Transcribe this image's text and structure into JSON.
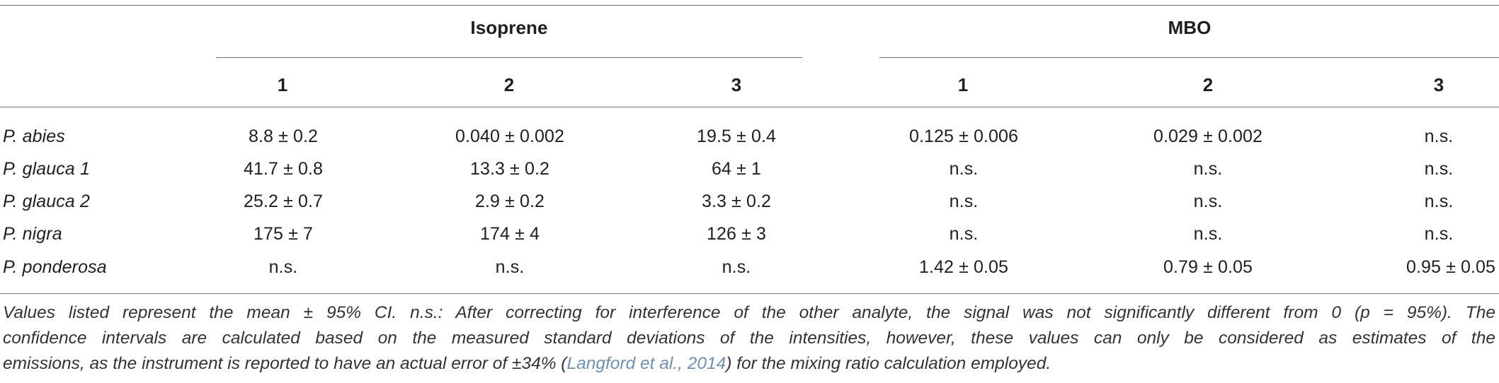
{
  "table": {
    "groups": [
      {
        "label": "Isoprene"
      },
      {
        "label": "MBO"
      }
    ],
    "columns": [
      "1",
      "2",
      "3",
      "1",
      "2",
      "3"
    ],
    "rows": [
      {
        "name": "P. abies",
        "values": [
          "8.8 ± 0.2",
          "0.040 ± 0.002",
          "19.5 ± 0.4",
          "0.125 ± 0.006",
          "0.029 ± 0.002",
          "n.s."
        ]
      },
      {
        "name": "P. glauca 1",
        "values": [
          "41.7 ± 0.8",
          "13.3 ± 0.2",
          "64 ± 1",
          "n.s.",
          "n.s.",
          "n.s."
        ]
      },
      {
        "name": "P. glauca 2",
        "values": [
          "25.2 ± 0.7",
          "2.9 ± 0.2",
          "3.3 ± 0.2",
          "n.s.",
          "n.s.",
          "n.s."
        ]
      },
      {
        "name": "P. nigra",
        "values": [
          "175 ± 7",
          "174 ± 4",
          "126 ± 3",
          "n.s.",
          "n.s.",
          "n.s."
        ]
      },
      {
        "name": "P. ponderosa",
        "values": [
          "n.s.",
          "n.s.",
          "n.s.",
          "1.42 ± 0.05",
          "0.79 ± 0.05",
          "0.95 ± 0.05"
        ]
      }
    ]
  },
  "caption": {
    "line1": "Values listed represent the mean ± 95% CI. n.s.: After correcting for interference of the other analyte, the signal was not significantly different from 0 (p = 95%). The",
    "line2": "confidence intervals are calculated based on the measured standard deviations of the intensities, however, these values can only be considered as estimates of the",
    "line3_pre": "emissions, as the instrument is reported to have an actual error of ±34% (",
    "line3_cite": "Langford et al., 2014",
    "line3_post": ") for the mixing ratio calculation employed."
  }
}
